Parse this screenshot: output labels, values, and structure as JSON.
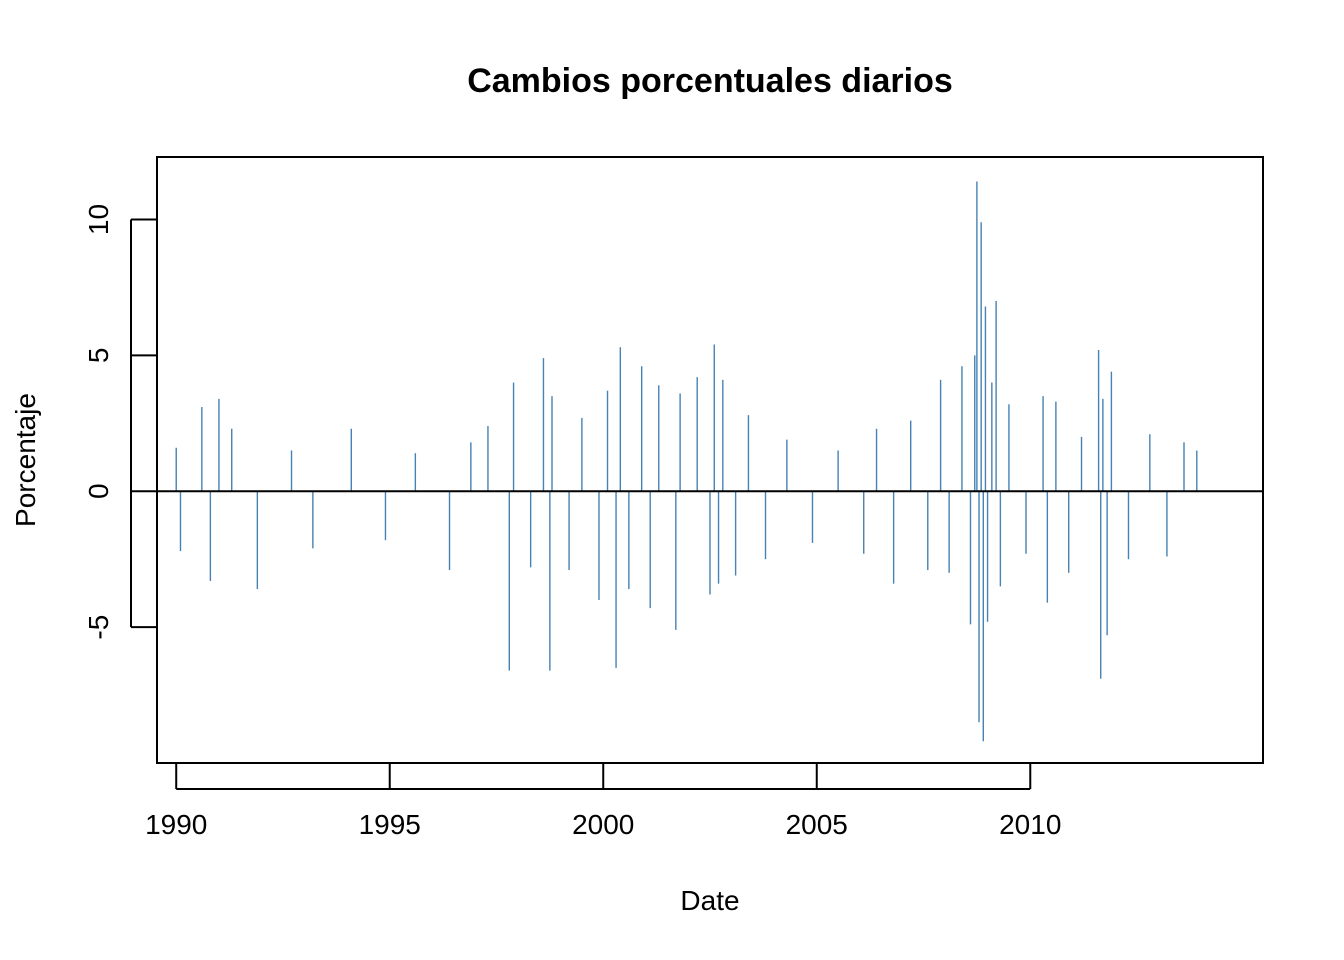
{
  "chart_data": {
    "type": "bar",
    "title": "Cambios porcentuales diarios",
    "xlabel": "Date",
    "ylabel": "Porcentaje",
    "x_ticks": [
      "1990",
      "1995",
      "2000",
      "2005",
      "2010"
    ],
    "y_ticks": [
      "-5",
      "0",
      "5",
      "10"
    ],
    "xlim": [
      1989.55,
      2015.45
    ],
    "ylim": [
      -10.0,
      12.3
    ],
    "baseline": 0,
    "grid": false,
    "bar_color": "#4682B4",
    "series": [
      {
        "x": [
          1990.0,
          1990.1,
          1990.6,
          1990.8,
          1991.0,
          1991.3,
          1991.9,
          1992.7,
          1993.2,
          1994.1,
          1994.9,
          1995.6,
          1996.4,
          1996.9,
          1997.3,
          1997.8,
          1997.9,
          1998.3,
          1998.6,
          1998.75,
          1998.8,
          1999.2,
          1999.5,
          1999.9,
          2000.1,
          2000.3,
          2000.4,
          2000.6,
          2000.9,
          2001.1,
          2001.3,
          2001.7,
          2001.8,
          2002.2,
          2002.5,
          2002.6,
          2002.7,
          2002.8,
          2003.1,
          2003.4,
          2003.8,
          2004.3,
          2004.9,
          2005.5,
          2006.1,
          2006.4,
          2006.8,
          2007.2,
          2007.6,
          2007.9,
          2008.1,
          2008.4,
          2008.6,
          2008.7,
          2008.75,
          2008.8,
          2008.85,
          2008.9,
          2008.95,
          2009.0,
          2009.1,
          2009.2,
          2009.3,
          2009.5,
          2009.9,
          2010.3,
          2010.4,
          2010.6,
          2010.9,
          2011.2,
          2011.6,
          2011.65,
          2011.7,
          2011.8,
          2011.9,
          2012.3,
          2012.8,
          2013.2,
          2013.6,
          2013.9
        ],
        "values": [
          1.6,
          -2.2,
          3.1,
          -3.3,
          3.4,
          2.3,
          -3.6,
          1.5,
          -2.1,
          2.3,
          -1.8,
          1.4,
          -2.9,
          1.8,
          2.4,
          -6.6,
          4.0,
          -2.8,
          4.9,
          -6.6,
          3.5,
          -2.9,
          2.7,
          -4.0,
          3.7,
          -6.5,
          5.3,
          -3.6,
          4.6,
          -4.3,
          3.9,
          -5.1,
          3.6,
          4.2,
          -3.8,
          5.4,
          -3.4,
          4.1,
          -3.1,
          2.8,
          -2.5,
          1.9,
          -1.9,
          1.5,
          -2.3,
          2.3,
          -3.4,
          2.6,
          -2.9,
          4.1,
          -3.0,
          4.6,
          -4.9,
          5.0,
          11.4,
          -8.5,
          9.9,
          -9.2,
          6.8,
          -4.8,
          4.0,
          7.0,
          -3.5,
          3.2,
          -2.3,
          3.5,
          -4.1,
          3.3,
          -3.0,
          2.0,
          5.2,
          -6.9,
          3.4,
          -5.3,
          4.4,
          -2.5,
          2.1,
          -2.4,
          1.8,
          1.5
        ]
      }
    ]
  }
}
